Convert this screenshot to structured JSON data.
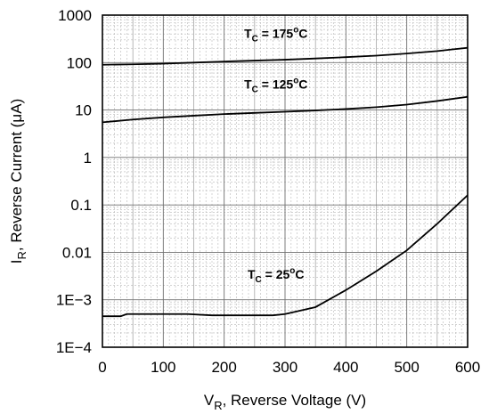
{
  "chart_data": {
    "type": "line",
    "x_scale": "linear",
    "y_scale": "log",
    "xlim": [
      0,
      600
    ],
    "ylim": [
      0.0001,
      1000
    ],
    "grid": true,
    "x_ticks": [
      0,
      100,
      200,
      300,
      400,
      500,
      600
    ],
    "x_tick_labels": [
      "0",
      "100",
      "200",
      "300",
      "400",
      "500",
      "600"
    ],
    "y_ticks": [
      0.0001,
      0.001,
      0.01,
      0.1,
      1,
      10,
      100,
      1000
    ],
    "y_tick_labels": [
      "1E−4",
      "1E−3",
      "0.01",
      "0.1",
      "1",
      "10",
      "100",
      "1000"
    ],
    "xlabel": {
      "main": "V",
      "sub": "R",
      "rest": ", Reverse Voltage (V)"
    },
    "ylabel": {
      "main": "I",
      "sub": "R",
      "rest": ", Reverse Current (",
      "greek": "μ",
      "end": "A)"
    },
    "series": [
      {
        "label": {
          "t": "T",
          "sub": "C",
          "mid": " = 175",
          "sup": "o",
          "end": "C"
        },
        "label_at": [
          285,
          330
        ],
        "x": [
          0,
          50,
          100,
          150,
          200,
          250,
          300,
          350,
          400,
          450,
          500,
          550,
          600
        ],
        "y": [
          90,
          92,
          95,
          100,
          105,
          110,
          115,
          122,
          130,
          140,
          155,
          175,
          205
        ]
      },
      {
        "label": {
          "t": "T",
          "sub": "C",
          "mid": " = 125",
          "sup": "o",
          "end": "C"
        },
        "label_at": [
          285,
          28
        ],
        "x": [
          0,
          50,
          100,
          150,
          200,
          250,
          300,
          350,
          400,
          450,
          500,
          550,
          600
        ],
        "y": [
          5.5,
          6.3,
          7.0,
          7.6,
          8.2,
          8.7,
          9.2,
          9.8,
          10.5,
          11.5,
          13,
          15.5,
          19
        ]
      },
      {
        "label": {
          "t": "T",
          "sub": "C",
          "mid": " = 25",
          "sup": "o",
          "end": "C"
        },
        "label_at": [
          285,
          0.0028
        ],
        "x": [
          0,
          30,
          40,
          140,
          180,
          280,
          300,
          350,
          400,
          450,
          500,
          550,
          600
        ],
        "y": [
          0.00045,
          0.00045,
          0.0005,
          0.0005,
          0.00047,
          0.00047,
          0.0005,
          0.0007,
          0.0016,
          0.004,
          0.011,
          0.04,
          0.16
        ]
      }
    ]
  }
}
